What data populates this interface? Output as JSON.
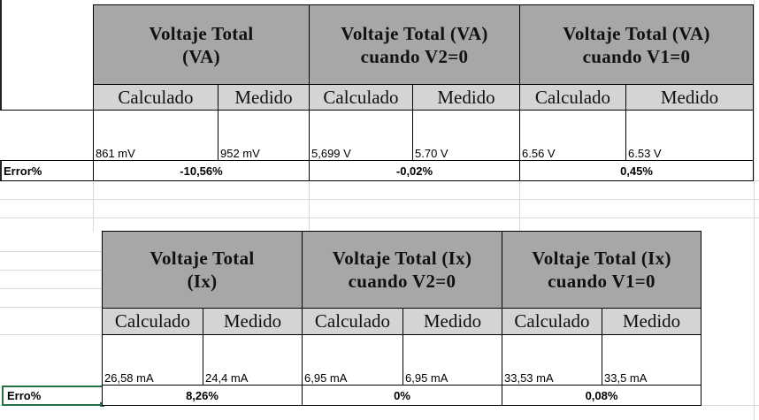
{
  "table1": {
    "headers": [
      "Voltaje Total\n(VA)",
      "Voltaje Total  (VA)\ncuando V2=0",
      "Voltaje Total  (VA)\ncuando V1=0"
    ],
    "subheaders": [
      "Calculado",
      "Medido",
      "Calculado",
      "Medido",
      "Calculado",
      "Medido"
    ],
    "values": [
      "861 mV",
      "952 mV",
      "5,699 V",
      "5.70 V",
      "6.56 V",
      "6.53 V"
    ],
    "error_label": "Error%",
    "errors": [
      "-10,56%",
      "-0,02%",
      "0,45%"
    ]
  },
  "table2": {
    "headers": [
      "Voltaje Total\n(Ix)",
      "Voltaje Total  (Ix)\ncuando V2=0",
      "Voltaje Total  (Ix)\ncuando V1=0"
    ],
    "subheaders": [
      "Calculado",
      "Medido",
      "Calculado",
      "Medido",
      "Calculado",
      "Medido"
    ],
    "values": [
      "26,58 mA",
      "24,4 mA",
      "6,95 mA",
      "6,95 mA",
      "33,53 mA",
      "33,5 mA"
    ],
    "error_label": "Erro%",
    "errors": [
      "8,26%",
      "0%",
      "0,08%"
    ]
  }
}
